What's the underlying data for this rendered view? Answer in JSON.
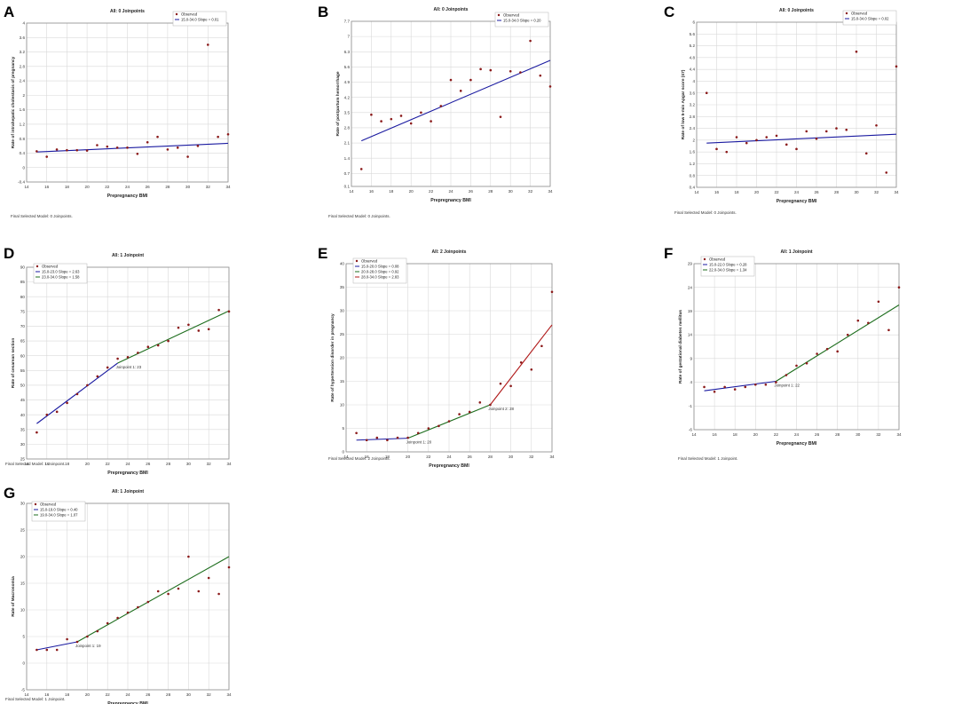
{
  "chart_data": [
    {
      "letter": "A",
      "type": "scatter",
      "title": "All: 0 Joinpoints",
      "xlabel": "Prepregnancy BMI",
      "ylabel": "Rate of intrahepatic cholestasis of pregnancy",
      "xlim": [
        14,
        34
      ],
      "xticks": [
        14,
        16,
        18,
        20,
        22,
        24,
        26,
        28,
        30,
        32,
        34
      ],
      "ylim": [
        -0.4,
        4
      ],
      "yticks": [
        -0.4,
        0,
        0.4,
        0.8,
        1.2,
        1.6,
        2,
        2.4,
        2.8,
        3.2,
        3.6,
        4
      ],
      "observed": [
        [
          15,
          0.45
        ],
        [
          16,
          0.3
        ],
        [
          17,
          0.5
        ],
        [
          18,
          0.48
        ],
        [
          19,
          0.48
        ],
        [
          20,
          0.47
        ],
        [
          21,
          0.62
        ],
        [
          22,
          0.58
        ],
        [
          23,
          0.55
        ],
        [
          24,
          0.55
        ],
        [
          25,
          0.38
        ],
        [
          26,
          0.7
        ],
        [
          27,
          0.85
        ],
        [
          28,
          0.5
        ],
        [
          29,
          0.55
        ],
        [
          30,
          0.3
        ],
        [
          31,
          0.6
        ],
        [
          32,
          3.4
        ],
        [
          33,
          0.85
        ],
        [
          34,
          0.92
        ]
      ],
      "segments": [
        {
          "x": [
            15,
            34
          ],
          "y": [
            0.43,
            0.67
          ],
          "color": "#1a1aa0"
        }
      ],
      "legend": [
        "Observed",
        "15.0-34.0 Slope = 0.01"
      ],
      "joinpoints": [],
      "footnote": "Final Selected Model: 0 Joinpoints."
    },
    {
      "letter": "B",
      "type": "scatter",
      "title": "All: 0 Joinpoints",
      "xlabel": "Prepregnancy BMI",
      "ylabel": "Rate of postpartum hemorrhage",
      "xlim": [
        14,
        34
      ],
      "xticks": [
        14,
        16,
        18,
        20,
        22,
        24,
        26,
        28,
        30,
        32,
        34
      ],
      "ylim": [
        0.1,
        7.7
      ],
      "yticks": [
        0.1,
        0.7,
        1.4,
        2.1,
        2.8,
        3.5,
        4.2,
        4.9,
        5.6,
        6.3,
        7,
        7.7
      ],
      "observed": [
        [
          15,
          0.9
        ],
        [
          16,
          3.4
        ],
        [
          17,
          3.1
        ],
        [
          18,
          3.2
        ],
        [
          19,
          3.35
        ],
        [
          20,
          3.0
        ],
        [
          21,
          3.5
        ],
        [
          22,
          3.1
        ],
        [
          23,
          3.8
        ],
        [
          24,
          5.0
        ],
        [
          25,
          4.5
        ],
        [
          26,
          5.0
        ],
        [
          27,
          5.5
        ],
        [
          28,
          5.45
        ],
        [
          29,
          3.3
        ],
        [
          30,
          5.4
        ],
        [
          31,
          5.35
        ],
        [
          32,
          6.8
        ],
        [
          33,
          5.2
        ],
        [
          34,
          4.7
        ]
      ],
      "segments": [
        {
          "x": [
            15,
            34
          ],
          "y": [
            2.2,
            5.9
          ],
          "color": "#1a1aa0"
        }
      ],
      "legend": [
        "Observed",
        "15.0-34.0 Slope = 0.20"
      ],
      "joinpoints": [],
      "footnote": "Final Selected Model: 0 Joinpoints."
    },
    {
      "letter": "C",
      "type": "scatter",
      "title": "All: 0 Joinpoints",
      "xlabel": "Prepregnancy BMI",
      "ylabel": "Rate of low 5-min Apgar score (≤7)",
      "xlim": [
        14,
        34
      ],
      "xticks": [
        14,
        16,
        18,
        20,
        22,
        24,
        26,
        28,
        30,
        32,
        34
      ],
      "ylim": [
        0.4,
        6
      ],
      "yticks": [
        0.4,
        0.8,
        1.2,
        1.6,
        2,
        2.4,
        2.8,
        3.2,
        3.6,
        4,
        4.4,
        4.8,
        5.2,
        5.6,
        6
      ],
      "observed": [
        [
          15,
          3.6
        ],
        [
          16,
          1.7
        ],
        [
          17,
          1.6
        ],
        [
          18,
          2.1
        ],
        [
          19,
          1.9
        ],
        [
          20,
          2.0
        ],
        [
          21,
          2.1
        ],
        [
          22,
          2.15
        ],
        [
          23,
          1.85
        ],
        [
          24,
          1.7
        ],
        [
          25,
          2.3
        ],
        [
          26,
          2.05
        ],
        [
          27,
          2.3
        ],
        [
          28,
          2.4
        ],
        [
          29,
          2.35
        ],
        [
          30,
          5.0
        ],
        [
          31,
          1.55
        ],
        [
          32,
          2.5
        ],
        [
          33,
          0.9
        ],
        [
          34,
          4.5
        ]
      ],
      "segments": [
        {
          "x": [
            15,
            34
          ],
          "y": [
            1.9,
            2.2
          ],
          "color": "#1a1aa0"
        }
      ],
      "legend": [
        "Observed",
        "15.0-34.0 Slope = 0.02"
      ],
      "joinpoints": [],
      "footnote": "Final Selected Model: 0 Joinpoints."
    },
    {
      "letter": "D",
      "type": "scatter",
      "title": "All: 1 Joinpoint",
      "xlabel": "Prepregnancy BMI",
      "ylabel": "Rate of cesarean section",
      "xlim": [
        14,
        34
      ],
      "xticks": [
        14,
        16,
        18,
        20,
        22,
        24,
        26,
        28,
        30,
        32,
        34
      ],
      "ylim": [
        25,
        90
      ],
      "yticks": [
        25,
        30,
        35,
        40,
        45,
        50,
        55,
        60,
        65,
        70,
        75,
        80,
        85,
        90
      ],
      "observed": [
        [
          15,
          34
        ],
        [
          16,
          40
        ],
        [
          17,
          41
        ],
        [
          18,
          44
        ],
        [
          19,
          47
        ],
        [
          20,
          50
        ],
        [
          21,
          53
        ],
        [
          22,
          56
        ],
        [
          23,
          59
        ],
        [
          24,
          59.5
        ],
        [
          25,
          61
        ],
        [
          26,
          63
        ],
        [
          27,
          63.5
        ],
        [
          28,
          65
        ],
        [
          29,
          69.5
        ],
        [
          30,
          70.5
        ],
        [
          31,
          68.5
        ],
        [
          32,
          69
        ],
        [
          33,
          75.5
        ],
        [
          34,
          75
        ]
      ],
      "segments": [
        {
          "x": [
            15,
            23
          ],
          "y": [
            37,
            57.5
          ],
          "color": "#1a1aa0"
        },
        {
          "x": [
            23,
            34
          ],
          "y": [
            57.5,
            75.2
          ],
          "color": "#1e6e1e"
        }
      ],
      "legend": [
        "Observed",
        "15.0-23.0 Slope = 2.63",
        "23.0-34.0 Slope = 1.58"
      ],
      "joinpoints": [
        {
          "x": 23,
          "y": 57.5,
          "label": "Joinpoint 1: 23"
        }
      ],
      "footnote": "Final Selected Model: 1 Joinpoint."
    },
    {
      "letter": "E",
      "type": "scatter",
      "title": "All: 2 Joinpoints",
      "xlabel": "Prepregnancy BMI",
      "ylabel": "Rate of hypertension disorder in pregnancy",
      "xlim": [
        14,
        34
      ],
      "xticks": [
        14,
        16,
        18,
        20,
        22,
        24,
        26,
        28,
        30,
        32,
        34
      ],
      "ylim": [
        0,
        40
      ],
      "yticks": [
        0,
        5,
        10,
        15,
        20,
        25,
        30,
        35,
        40
      ],
      "observed": [
        [
          15,
          4
        ],
        [
          16,
          2.5
        ],
        [
          17,
          3
        ],
        [
          18,
          2.5
        ],
        [
          19,
          3
        ],
        [
          20,
          3
        ],
        [
          21,
          4
        ],
        [
          22,
          5
        ],
        [
          23,
          5.5
        ],
        [
          24,
          6.5
        ],
        [
          25,
          8
        ],
        [
          26,
          8.5
        ],
        [
          27,
          10.5
        ],
        [
          28,
          10
        ],
        [
          29,
          14.5
        ],
        [
          30,
          14
        ],
        [
          31,
          19
        ],
        [
          32,
          17.5
        ],
        [
          33,
          22.5
        ],
        [
          34,
          34
        ]
      ],
      "segments": [
        {
          "x": [
            15,
            20
          ],
          "y": [
            2.5,
            2.9
          ],
          "color": "#1a1aa0"
        },
        {
          "x": [
            20,
            28
          ],
          "y": [
            2.9,
            10
          ],
          "color": "#1e6e1e"
        },
        {
          "x": [
            28,
            34
          ],
          "y": [
            10,
            27
          ],
          "color": "#b01818"
        }
      ],
      "legend": [
        "Observed",
        "15.0-20.0 Slope = 0.08",
        "20.0-28.0 Slope = 0.92",
        "28.0-34.0 Slope = 2.83"
      ],
      "joinpoints": [
        {
          "x": 20,
          "y": 2.9,
          "label": "Joinpoint 1: 20"
        },
        {
          "x": 28,
          "y": 10,
          "label": "Joinpoint 2: 28"
        }
      ],
      "footnote": "Final Selected Model: 2 Joinpoints."
    },
    {
      "letter": "F",
      "type": "scatter",
      "title": "All: 1 Joinpoint",
      "xlabel": "Prepregnancy BMI",
      "ylabel": "Rate of gestational diabetes mellitus",
      "xlim": [
        14,
        34
      ],
      "xticks": [
        14,
        16,
        18,
        20,
        22,
        24,
        26,
        28,
        30,
        32,
        34
      ],
      "ylim": [
        -6,
        29
      ],
      "yticks": [
        -6,
        -1,
        4,
        9,
        14,
        19,
        24,
        29
      ],
      "observed": [
        [
          15,
          3
        ],
        [
          16,
          2
        ],
        [
          17,
          3
        ],
        [
          18,
          2.5
        ],
        [
          19,
          3
        ],
        [
          20,
          3.5
        ],
        [
          21,
          3.5
        ],
        [
          22,
          4
        ],
        [
          23,
          5.5
        ],
        [
          24,
          7.5
        ],
        [
          25,
          8
        ],
        [
          26,
          10
        ],
        [
          27,
          11
        ],
        [
          28,
          10.5
        ],
        [
          29,
          14
        ],
        [
          30,
          17
        ],
        [
          31,
          16.5
        ],
        [
          32,
          21
        ],
        [
          33,
          15
        ],
        [
          34,
          24
        ]
      ],
      "segments": [
        {
          "x": [
            15,
            22
          ],
          "y": [
            2.2,
            4.2
          ],
          "color": "#1a1aa0"
        },
        {
          "x": [
            22,
            34
          ],
          "y": [
            4.2,
            20.3
          ],
          "color": "#1e6e1e"
        }
      ],
      "legend": [
        "Observed",
        "15.0-22.0 Slope = 0.28",
        "22.0-34.0 Slope = 1.34"
      ],
      "joinpoints": [
        {
          "x": 22,
          "y": 4.2,
          "label": "Joinpoint 1: 22"
        }
      ],
      "footnote": "Final Selected Model: 1 Joinpoint."
    },
    {
      "letter": "G",
      "type": "scatter",
      "title": "All: 1 Joinpoint",
      "xlabel": "Prepregnancy BMI",
      "ylabel": "Rate of Macrosomia",
      "xlim": [
        14,
        34
      ],
      "xticks": [
        14,
        16,
        18,
        20,
        22,
        24,
        26,
        28,
        30,
        32,
        34
      ],
      "ylim": [
        -5,
        30
      ],
      "yticks": [
        -5,
        0,
        5,
        10,
        15,
        20,
        25,
        30
      ],
      "observed": [
        [
          15,
          2.5
        ],
        [
          16,
          2.5
        ],
        [
          17,
          2.5
        ],
        [
          18,
          4.5
        ],
        [
          19,
          4
        ],
        [
          20,
          5
        ],
        [
          21,
          6
        ],
        [
          22,
          7.5
        ],
        [
          23,
          8.5
        ],
        [
          24,
          9.5
        ],
        [
          25,
          10.5
        ],
        [
          26,
          11.5
        ],
        [
          27,
          13.5
        ],
        [
          28,
          13
        ],
        [
          29,
          14
        ],
        [
          30,
          20
        ],
        [
          31,
          13.5
        ],
        [
          32,
          16
        ],
        [
          33,
          13
        ],
        [
          34,
          18
        ]
      ],
      "segments": [
        {
          "x": [
            15,
            19
          ],
          "y": [
            2.5,
            4
          ],
          "color": "#1a1aa0"
        },
        {
          "x": [
            19,
            34
          ],
          "y": [
            4,
            20
          ],
          "color": "#1e6e1e"
        }
      ],
      "legend": [
        "Observed",
        "15.0-19.0 Slope = 0.40",
        "19.0-34.0 Slope = 1.07"
      ],
      "joinpoints": [
        {
          "x": 19,
          "y": 4,
          "label": "Joinpoint 1: 19"
        }
      ],
      "footnote": "Final Selected Model: 1 Joinpoint."
    }
  ]
}
